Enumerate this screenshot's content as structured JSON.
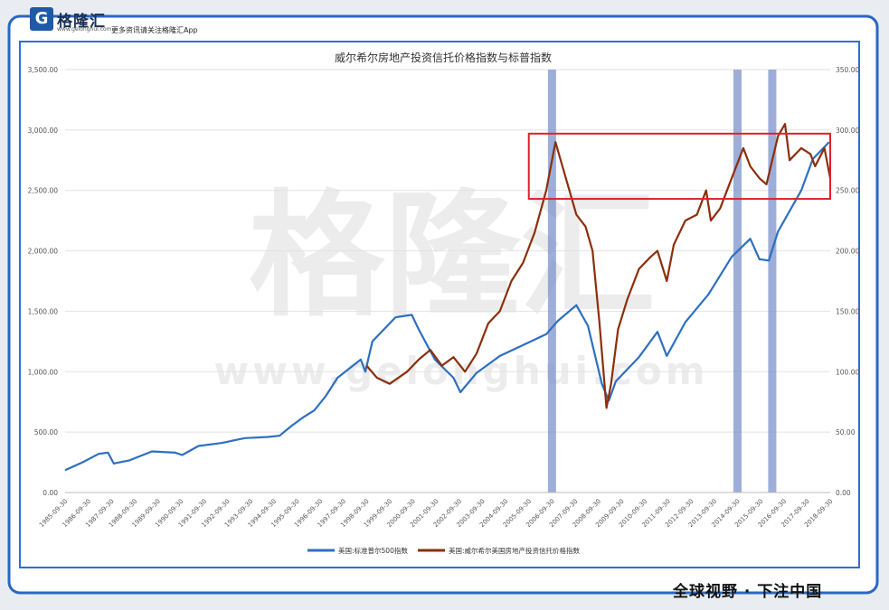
{
  "header": {
    "logo_text": "格隆汇",
    "logo_url": "www.gelonghui.com",
    "tagline": "更多资讯请关注格隆汇App"
  },
  "watermark": {
    "main": "格隆汇",
    "url": "www.gelonghui.com"
  },
  "footer": {
    "slogan": "全球视野 · 下注中国"
  },
  "colors": {
    "frame": "#2a66c4",
    "sp500": "#2e6fbf",
    "reit": "#8b2f0c",
    "highlight_bar": "#7b93cc",
    "highlight_box": "#e0202a"
  },
  "chart_data": {
    "type": "line",
    "title": "威尔希尔房地产投资信托价格指数与标普指数",
    "x_ticks": [
      "1985-09-30",
      "1986-09-30",
      "1987-09-30",
      "1988-09-30",
      "1989-09-30",
      "1990-09-30",
      "1991-09-30",
      "1992-09-30",
      "1993-09-30",
      "1994-09-30",
      "1995-09-30",
      "1996-09-30",
      "1997-09-30",
      "1998-09-30",
      "1999-09-30",
      "2000-09-30",
      "2001-09-30",
      "2002-09-30",
      "2003-09-30",
      "2004-09-30",
      "2005-09-30",
      "2006-09-30",
      "2007-09-30",
      "2008-09-30",
      "2009-09-30",
      "2010-09-30",
      "2011-09-30",
      "2012-09-30",
      "2013-09-30",
      "2014-09-30",
      "2015-09-30",
      "2016-09-30",
      "2017-09-30",
      "2018-09-30"
    ],
    "xlim": [
      1985.75,
      2018.75
    ],
    "y_left": {
      "ticks": [
        "0.00",
        "500.00",
        "1,000.00",
        "1,500.00",
        "2,000.00",
        "2,500.00",
        "3,000.00",
        "3,500.00"
      ],
      "ylim": [
        0,
        3500
      ]
    },
    "y_right": {
      "ticks": [
        "0.00",
        "50.00",
        "100.00",
        "150.00",
        "200.00",
        "250.00",
        "300.00",
        "350.00"
      ],
      "ylim": [
        0,
        350
      ]
    },
    "series": [
      {
        "name": "美国:标准普尔500指数",
        "axis": "left",
        "x": [
          1985.75,
          1986.5,
          1987.2,
          1987.6,
          1987.85,
          1988.5,
          1989.5,
          1990.5,
          1990.8,
          1991.5,
          1992.5,
          1993.5,
          1994.5,
          1995.0,
          1995.5,
          1996.0,
          1996.5,
          1997.0,
          1997.5,
          1998.5,
          1998.7,
          1999.0,
          1999.5,
          2000.0,
          2000.7,
          2001.0,
          2001.7,
          2002.5,
          2002.8,
          2003.5,
          2004.5,
          2005.5,
          2006.5,
          2007.0,
          2007.8,
          2008.3,
          2008.9,
          2009.2,
          2009.5,
          2010.5,
          2011.3,
          2011.7,
          2012.5,
          2013.5,
          2014.5,
          2015.3,
          2015.7,
          2016.1,
          2016.5,
          2017.5,
          2018.0,
          2018.5,
          2018.7
        ],
        "values": [
          185,
          250,
          320,
          330,
          240,
          265,
          340,
          330,
          310,
          385,
          410,
          450,
          460,
          470,
          550,
          620,
          680,
          800,
          950,
          1100,
          1000,
          1250,
          1350,
          1450,
          1470,
          1350,
          1100,
          950,
          830,
          990,
          1130,
          1220,
          1310,
          1420,
          1550,
          1380,
          900,
          760,
          920,
          1120,
          1330,
          1130,
          1410,
          1640,
          1950,
          2100,
          1930,
          1920,
          2160,
          2500,
          2760,
          2860,
          2900
        ]
      },
      {
        "name": "美国:威尔希尔美国房地产投资信托价格指数",
        "axis": "right",
        "x": [
          1998.75,
          1999.2,
          1999.75,
          2000.5,
          2001.0,
          2001.5,
          2002.0,
          2002.5,
          2003.0,
          2003.5,
          2004.0,
          2004.5,
          2005.0,
          2005.5,
          2006.0,
          2006.5,
          2006.9,
          2007.2,
          2007.5,
          2007.8,
          2008.2,
          2008.5,
          2008.8,
          2009.1,
          2009.3,
          2009.6,
          2010.0,
          2010.5,
          2011.0,
          2011.3,
          2011.7,
          2012.0,
          2012.5,
          2013.0,
          2013.4,
          2013.6,
          2014.0,
          2014.5,
          2015.0,
          2015.3,
          2015.7,
          2016.0,
          2016.5,
          2016.8,
          2017.0,
          2017.5,
          2017.9,
          2018.1,
          2018.5,
          2018.75
        ],
        "values": [
          105,
          95,
          90,
          100,
          110,
          118,
          105,
          112,
          100,
          115,
          140,
          150,
          175,
          190,
          215,
          250,
          290,
          270,
          250,
          230,
          220,
          200,
          140,
          70,
          90,
          135,
          160,
          185,
          195,
          200,
          175,
          205,
          225,
          230,
          250,
          225,
          235,
          260,
          285,
          270,
          260,
          255,
          295,
          305,
          275,
          285,
          280,
          270,
          285,
          260
        ]
      }
    ],
    "highlight_bands": [
      2006.75,
      2014.75,
      2016.25
    ],
    "highlight_box": {
      "x": [
        2005.75,
        2018.75
      ],
      "y_right": [
        243,
        297
      ]
    },
    "legend": "bottom-center"
  }
}
